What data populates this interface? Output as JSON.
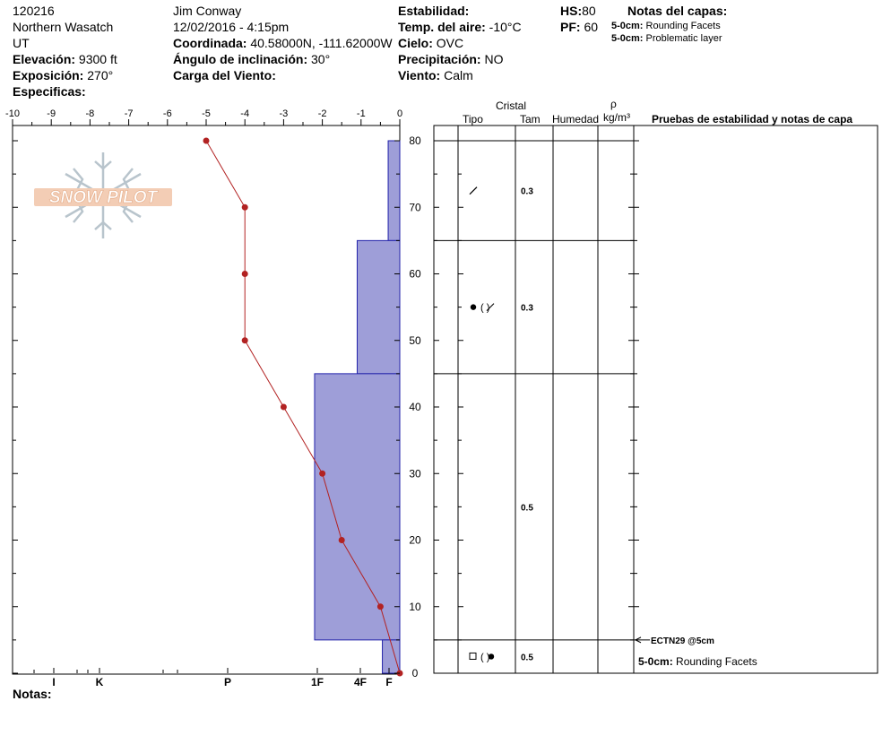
{
  "header": {
    "id": "120216",
    "region": "Northern Wasatch",
    "state": "UT",
    "elevation_label": "Elevación:",
    "elevation_value": "9300 ft",
    "aspect_label": "Exposición:",
    "aspect_value": "270°",
    "specifics_label": "Especificas:",
    "observer": "Jim Conway",
    "datetime": "12/02/2016 - 4:15pm",
    "coord_label": "Coordinada:",
    "coord_value": "40.58000N, -111.62000W",
    "slope_label": "Ángulo de inclinación:",
    "slope_value": "30°",
    "windload_label": "Carga del Viento:",
    "stability_label": "Estabilidad:",
    "airtemp_label": "Temp. del aire:",
    "airtemp_value": "-10°C",
    "sky_label": "Cielo:",
    "sky_value": "OVC",
    "precip_label": "Precipitación:",
    "precip_value": "NO",
    "wind_label": "Viento:",
    "wind_value": "Calm",
    "hs_label": "HS:",
    "hs_value": "80",
    "pf_label": "PF:",
    "pf_value": "60",
    "layer_notes_title": "Notas del capas:",
    "layer_notes": [
      {
        "depth": "5-0cm:",
        "text": "Rounding Facets"
      },
      {
        "depth": "5-0cm:",
        "text": "Problematic layer"
      }
    ]
  },
  "logo": {
    "text": "SNOW PILOT"
  },
  "columns": {
    "crystal": "Cristal",
    "type": "Tipo",
    "size": "Tam",
    "moisture": "Humedad",
    "rho": "ρ",
    "density_unit": "kg/m³",
    "tests": "Pruebas de estabilidad y notas de capa"
  },
  "notes_label": "Notas:",
  "chart_data": {
    "type": "line",
    "temp_axis": {
      "ticks": [
        "-10",
        "-9",
        "-8",
        "-7",
        "-6",
        "-5",
        "-4",
        "-3",
        "-2",
        "-1",
        "0"
      ],
      "range": [
        -10,
        0
      ]
    },
    "height_axis": {
      "ticks": [
        "0",
        "10",
        "20",
        "30",
        "40",
        "50",
        "60",
        "70",
        "80"
      ],
      "range": [
        0,
        80
      ],
      "unit": "cm"
    },
    "hardness_axis": {
      "labels": [
        "I",
        "K",
        "P",
        "1F",
        "4F",
        "F"
      ]
    },
    "temperature_profile": [
      {
        "height": 80,
        "temp": -5
      },
      {
        "height": 70,
        "temp": -4
      },
      {
        "height": 60,
        "temp": -4
      },
      {
        "height": 50,
        "temp": -4
      },
      {
        "height": 40,
        "temp": -3
      },
      {
        "height": 30,
        "temp": -2
      },
      {
        "height": 20,
        "temp": -1.5
      },
      {
        "height": 10,
        "temp": -0.5
      },
      {
        "height": 0,
        "temp": 0
      }
    ],
    "hardness_layers": [
      {
        "bottom": 65,
        "top": 80,
        "hardness": 0.3
      },
      {
        "bottom": 45,
        "top": 65,
        "hardness": 1.1
      },
      {
        "bottom": 5,
        "top": 45,
        "hardness": 2.2
      },
      {
        "bottom": 0,
        "top": 5,
        "hardness": 0.45
      }
    ],
    "layers": [
      {
        "top": 80,
        "bottom": 65,
        "grain_size": "0.3",
        "grain": "slash"
      },
      {
        "top": 65,
        "bottom": 45,
        "grain_size": "0.3",
        "grain": "dot-slash"
      },
      {
        "top": 45,
        "bottom": 5,
        "grain_size": "0.5",
        "grain": ""
      },
      {
        "top": 5,
        "bottom": 0,
        "grain_size": "0.5",
        "grain": "square-dot"
      }
    ],
    "stability_tests": [
      {
        "height": 5,
        "label": "ECTN29 @5cm"
      }
    ],
    "layer_note_bottom": {
      "depth": "5-0cm:",
      "text": "Rounding Facets"
    },
    "colors": {
      "hardness_fill": "#9e9ed8",
      "hardness_stroke": "#2222aa",
      "temp_line": "#b22222"
    }
  }
}
